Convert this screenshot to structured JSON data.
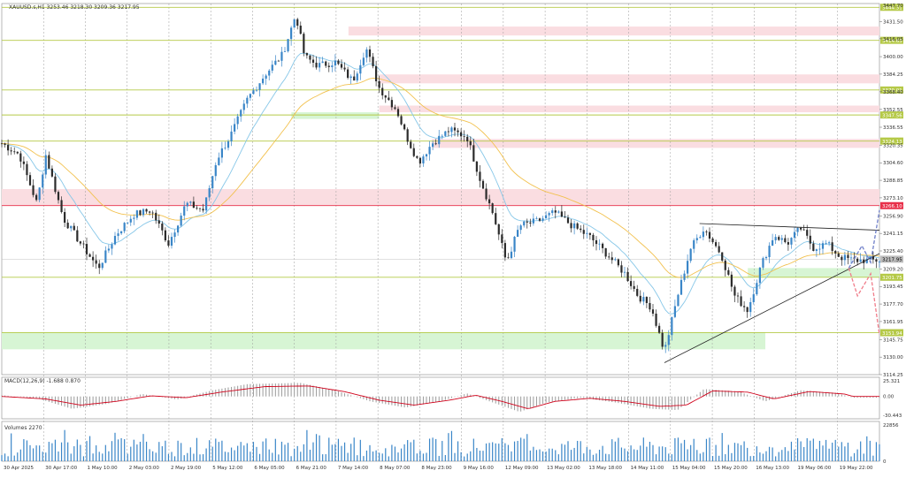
{
  "window": {
    "title": "XAUUSD.s,H1  3253.46 3218.30 3209.36 3217.95"
  },
  "indicators": {
    "macd_label": "MACD(12,26,9) -1.688 0.870",
    "volumes_label": "Volumes 2270"
  },
  "colors": {
    "background": "#ffffff",
    "bull_candle": "#3a86c8",
    "bear_candle": "#2b2b2b",
    "ma_fast": "#87c7e8",
    "ma_slow": "#f2c14e",
    "level_line": "#b5c947",
    "resistance_line": "#e8304a",
    "supply_zone": "#fadde1",
    "demand_zone": "#d7f5d4",
    "macd_hist": "#9a9a9a",
    "macd_signal": "#d0021b",
    "volume_bar": "#3a86c8",
    "bullish_projection": "#6f7fc9",
    "bearish_projection": "#f07d8a",
    "trendline": "#222222"
  },
  "chart_data": {
    "type": "candlestick",
    "symbol": "XAUUSD.s",
    "timeframe": "H1",
    "ohlc": {
      "open": 3253.46,
      "high": 3218.3,
      "low": 3209.36,
      "close": 3217.95
    },
    "ylim": [
      3114.25,
      3447.7
    ],
    "price_axis_ticks": [
      3431.5,
      3416.05,
      3400.0,
      3384.25,
      3368.4,
      3352.55,
      3336.55,
      3320.35,
      3304.6,
      3288.85,
      3273.1,
      3256.9,
      3241.15,
      3225.4,
      3209.2,
      3193.45,
      3177.7,
      3161.95,
      3145.75,
      3130.0,
      3114.25
    ],
    "price_axis_top_label": "3447.70",
    "horizontal_levels": [
      {
        "price": 3444.31,
        "label": "3444.31",
        "kind": "level"
      },
      {
        "price": 3414.63,
        "label": "3414.63",
        "kind": "level"
      },
      {
        "price": 3370.01,
        "label": "3370.01",
        "kind": "level"
      },
      {
        "price": 3347.56,
        "label": "3347.56",
        "kind": "level"
      },
      {
        "price": 3324.13,
        "label": "3324.13",
        "kind": "level"
      },
      {
        "price": 3266.1,
        "label": "3266.10",
        "kind": "resistance"
      },
      {
        "price": 3201.75,
        "label": "3201.75",
        "kind": "level"
      },
      {
        "price": 3151.94,
        "label": "3151.94",
        "kind": "level"
      }
    ],
    "current_price": {
      "price": 3217.95,
      "label": "3217.95"
    },
    "zones": [
      {
        "kind": "supply",
        "from_price": 3419.0,
        "to_price": 3427.0,
        "x_start": 0.395,
        "x_end": 1.0
      },
      {
        "kind": "supply",
        "from_price": 3376.0,
        "to_price": 3384.0,
        "x_start": 0.43,
        "x_end": 1.0
      },
      {
        "kind": "supply",
        "from_price": 3350.0,
        "to_price": 3356.0,
        "x_start": 0.43,
        "x_end": 1.0
      },
      {
        "kind": "supply",
        "from_price": 3318.0,
        "to_price": 3326.0,
        "x_start": 0.49,
        "x_end": 1.0
      },
      {
        "kind": "supply",
        "from_price": 3266.1,
        "to_price": 3281.0,
        "x_start": 0.0,
        "x_end": 1.0
      },
      {
        "kind": "demand",
        "from_price": 3202.0,
        "to_price": 3210.0,
        "x_start": 0.85,
        "x_end": 1.0
      },
      {
        "kind": "demand",
        "from_price": 3137.0,
        "to_price": 3152.5,
        "x_start": 0.0,
        "x_end": 0.87
      },
      {
        "kind": "demand",
        "from_price": 3344.0,
        "to_price": 3350.0,
        "x_start": 0.33,
        "x_end": 0.43
      }
    ],
    "time_labels": [
      "30 Apr 2025",
      "30 Apr 17:00",
      "1 May 10:00",
      "2 May 03:00",
      "2 May 19:00",
      "5 May 12:00",
      "6 May 05:00",
      "6 May 21:00",
      "7 May 14:00",
      "8 May 07:00",
      "8 May 23:00",
      "9 May 16:00",
      "12 May 09:00",
      "13 May 02:00",
      "13 May 18:00",
      "14 May 11:00",
      "15 May 04:00",
      "15 May 20:00",
      "16 May 13:00",
      "19 May 06:00",
      "19 May 22:00"
    ],
    "price_anchors": [
      [
        0.0,
        3322
      ],
      [
        0.02,
        3312
      ],
      [
        0.04,
        3268
      ],
      [
        0.05,
        3312
      ],
      [
        0.07,
        3255
      ],
      [
        0.09,
        3232
      ],
      [
        0.11,
        3210
      ],
      [
        0.13,
        3240
      ],
      [
        0.15,
        3258
      ],
      [
        0.17,
        3262
      ],
      [
        0.19,
        3232
      ],
      [
        0.21,
        3268
      ],
      [
        0.23,
        3262
      ],
      [
        0.245,
        3308
      ],
      [
        0.26,
        3328
      ],
      [
        0.28,
        3362
      ],
      [
        0.3,
        3384
      ],
      [
        0.32,
        3402
      ],
      [
        0.335,
        3438
      ],
      [
        0.345,
        3400
      ],
      [
        0.36,
        3392
      ],
      [
        0.38,
        3395
      ],
      [
        0.4,
        3378
      ],
      [
        0.415,
        3408
      ],
      [
        0.43,
        3372
      ],
      [
        0.45,
        3352
      ],
      [
        0.46,
        3330
      ],
      [
        0.475,
        3305
      ],
      [
        0.49,
        3322
      ],
      [
        0.51,
        3334
      ],
      [
        0.53,
        3328
      ],
      [
        0.545,
        3290
      ],
      [
        0.56,
        3258
      ],
      [
        0.575,
        3215
      ],
      [
        0.59,
        3248
      ],
      [
        0.61,
        3252
      ],
      [
        0.63,
        3260
      ],
      [
        0.65,
        3248
      ],
      [
        0.67,
        3238
      ],
      [
        0.69,
        3222
      ],
      [
        0.71,
        3205
      ],
      [
        0.725,
        3185
      ],
      [
        0.74,
        3175
      ],
      [
        0.755,
        3135
      ],
      [
        0.77,
        3185
      ],
      [
        0.785,
        3228
      ],
      [
        0.8,
        3246
      ],
      [
        0.82,
        3222
      ],
      [
        0.835,
        3185
      ],
      [
        0.85,
        3172
      ],
      [
        0.865,
        3212
      ],
      [
        0.88,
        3240
      ],
      [
        0.895,
        3232
      ],
      [
        0.91,
        3246
      ],
      [
        0.925,
        3228
      ],
      [
        0.94,
        3232
      ],
      [
        0.955,
        3220
      ],
      [
        0.97,
        3217
      ]
    ],
    "triangle_lines": [
      {
        "from": [
          0.795,
          3250
        ],
        "to": [
          1.0,
          3244
        ],
        "kind": "resistance-trend"
      },
      {
        "from": [
          0.755,
          3125
        ],
        "to": [
          1.0,
          3223
        ],
        "kind": "support-trend"
      }
    ],
    "projections": [
      {
        "kind": "bullish",
        "points": [
          [
            0.965,
            3210
          ],
          [
            0.98,
            3230
          ],
          [
            0.99,
            3215
          ],
          [
            1.0,
            3262
          ]
        ]
      },
      {
        "kind": "bearish",
        "points": [
          [
            0.965,
            3210
          ],
          [
            0.975,
            3185
          ],
          [
            0.99,
            3205
          ],
          [
            1.0,
            3150
          ]
        ]
      }
    ],
    "macd": {
      "top_label": "25.321",
      "zero_label": "0.00",
      "bottom_label": "-30.443",
      "ylim": [
        -30.443,
        25.321
      ],
      "hist_anchors": [
        [
          0.0,
          2
        ],
        [
          0.04,
          -3
        ],
        [
          0.08,
          -20
        ],
        [
          0.12,
          -12
        ],
        [
          0.16,
          4
        ],
        [
          0.2,
          -5
        ],
        [
          0.24,
          10
        ],
        [
          0.28,
          20
        ],
        [
          0.34,
          22
        ],
        [
          0.38,
          10
        ],
        [
          0.42,
          -8
        ],
        [
          0.46,
          -18
        ],
        [
          0.5,
          -8
        ],
        [
          0.53,
          5
        ],
        [
          0.56,
          -10
        ],
        [
          0.59,
          -25
        ],
        [
          0.62,
          -10
        ],
        [
          0.66,
          -2
        ],
        [
          0.7,
          -10
        ],
        [
          0.74,
          -20
        ],
        [
          0.77,
          -22
        ],
        [
          0.8,
          12
        ],
        [
          0.84,
          8
        ],
        [
          0.87,
          -8
        ],
        [
          0.91,
          10
        ],
        [
          0.95,
          6
        ],
        [
          0.97,
          -2
        ]
      ],
      "signal_anchors": [
        [
          0.0,
          0
        ],
        [
          0.05,
          -4
        ],
        [
          0.09,
          -14
        ],
        [
          0.13,
          -8
        ],
        [
          0.17,
          1
        ],
        [
          0.21,
          -2
        ],
        [
          0.25,
          7
        ],
        [
          0.3,
          16
        ],
        [
          0.35,
          17
        ],
        [
          0.39,
          8
        ],
        [
          0.43,
          -6
        ],
        [
          0.47,
          -14
        ],
        [
          0.51,
          -6
        ],
        [
          0.54,
          2
        ],
        [
          0.57,
          -8
        ],
        [
          0.6,
          -20
        ],
        [
          0.63,
          -8
        ],
        [
          0.67,
          -3
        ],
        [
          0.71,
          -8
        ],
        [
          0.75,
          -16
        ],
        [
          0.78,
          -14
        ],
        [
          0.81,
          9
        ],
        [
          0.85,
          7
        ],
        [
          0.88,
          -4
        ],
        [
          0.92,
          8
        ],
        [
          0.96,
          4
        ],
        [
          0.97,
          0
        ]
      ]
    },
    "volume": {
      "top_label": "22856",
      "bottom_label": "0",
      "ylim": [
        0,
        22856
      ]
    }
  }
}
